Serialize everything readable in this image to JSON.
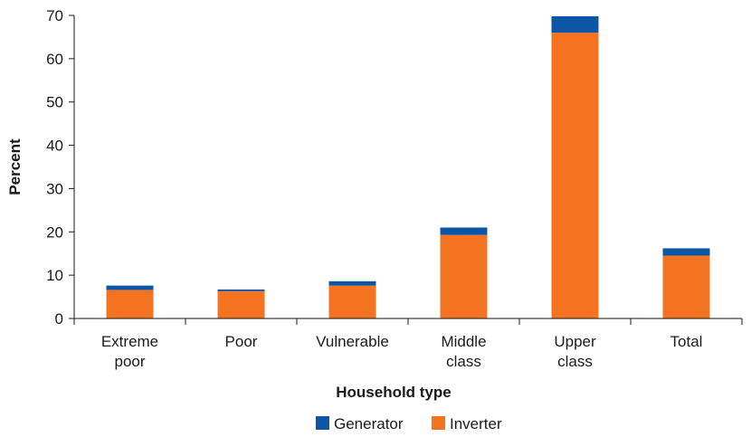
{
  "chart_data": {
    "type": "bar",
    "stacked": true,
    "categories": [
      [
        "Extreme",
        "poor"
      ],
      [
        "Poor"
      ],
      [
        "Vulnerable"
      ],
      [
        "Middle",
        "class"
      ],
      [
        "Upper",
        "class"
      ],
      [
        "Total"
      ]
    ],
    "series": [
      {
        "name": "Inverter",
        "color": "#f47320",
        "values": [
          6.6,
          6.3,
          7.6,
          19.3,
          66.0,
          14.5
        ]
      },
      {
        "name": "Generator",
        "color": "#0d56a6",
        "values": [
          1.0,
          0.4,
          1.0,
          1.7,
          3.8,
          1.7
        ]
      }
    ],
    "legend_order": [
      "Generator",
      "Inverter"
    ],
    "legend_position": "bottom-center",
    "xlabel": "Household type",
    "ylabel": "Percent",
    "ylim": [
      0,
      70
    ],
    "yticks": [
      0,
      10,
      20,
      30,
      40,
      50,
      60,
      70
    ],
    "grid": false
  }
}
